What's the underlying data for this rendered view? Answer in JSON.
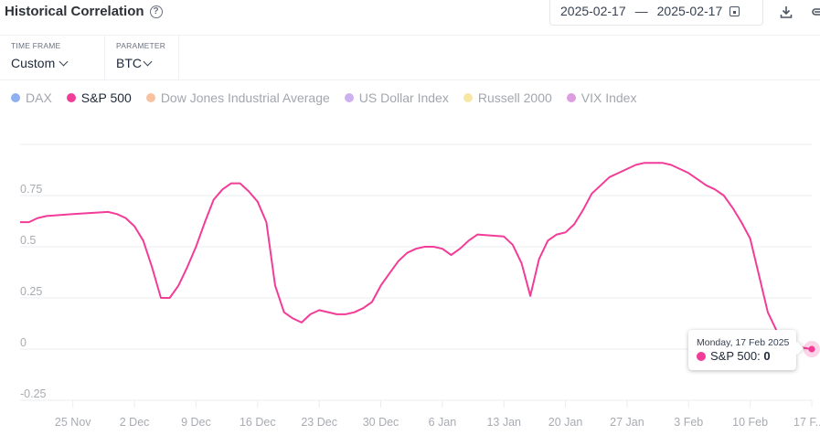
{
  "header": {
    "title": "Historical Correlation",
    "help_icon": "question-circle-icon",
    "date_start": "2025-02-17",
    "date_separator": "—",
    "date_end": "2025-02-17",
    "calendar_icon": "calendar-icon",
    "download_icon": "download-icon",
    "share_icon": "share-icon"
  },
  "filters": [
    {
      "label": "TIME FRAME",
      "value": "Custom"
    },
    {
      "label": "PARAMETER",
      "value": "BTC"
    }
  ],
  "legend": [
    {
      "name": "DAX",
      "color": "#8fb0f0",
      "active": false
    },
    {
      "name": "S&P 500",
      "color": "#f23c98",
      "active": true
    },
    {
      "name": "Dow Jones Industrial Average",
      "color": "#f7c2a0",
      "active": false
    },
    {
      "name": "US Dollar Index",
      "color": "#cdb0ee",
      "active": false
    },
    {
      "name": "Russell 2000",
      "color": "#f6e7a4",
      "active": false
    },
    {
      "name": "VIX Index",
      "color": "#dc9ee0",
      "active": false
    }
  ],
  "tooltip": {
    "date": "Monday, 17 Feb 2025",
    "series": "S&P 500: ",
    "value": "0"
  },
  "chart_data": {
    "type": "line",
    "title": "Historical Correlation",
    "xlabel": "",
    "ylabel": "",
    "ylim": [
      -0.25,
      1.0
    ],
    "grid": true,
    "legend_position": "top",
    "y_ticks": [
      "0.75",
      "0.5",
      "0.25",
      "0",
      "-0.25"
    ],
    "x_ticks": [
      "25 Nov",
      "2 Dec",
      "9 Dec",
      "16 Dec",
      "23 Dec",
      "30 Dec",
      "6 Jan",
      "13 Jan",
      "20 Jan",
      "27 Jan",
      "3 Feb",
      "10 Feb",
      "17 F..."
    ],
    "series": [
      {
        "name": "S&P 500",
        "color": "#f23c98",
        "points": [
          {
            "date": "2024-11-19",
            "value": 0.62
          },
          {
            "date": "2024-11-20",
            "value": 0.62
          },
          {
            "date": "2024-11-21",
            "value": 0.64
          },
          {
            "date": "2024-11-22",
            "value": 0.65
          },
          {
            "date": "2024-11-25",
            "value": 0.66
          },
          {
            "date": "2024-11-29",
            "value": 0.67
          },
          {
            "date": "2024-11-30",
            "value": 0.66
          },
          {
            "date": "2024-12-01",
            "value": 0.64
          },
          {
            "date": "2024-12-02",
            "value": 0.6
          },
          {
            "date": "2024-12-03",
            "value": 0.53
          },
          {
            "date": "2024-12-04",
            "value": 0.4
          },
          {
            "date": "2024-12-05",
            "value": 0.25
          },
          {
            "date": "2024-12-06",
            "value": 0.25
          },
          {
            "date": "2024-12-07",
            "value": 0.31
          },
          {
            "date": "2024-12-08",
            "value": 0.4
          },
          {
            "date": "2024-12-09",
            "value": 0.5
          },
          {
            "date": "2024-12-10",
            "value": 0.62
          },
          {
            "date": "2024-12-11",
            "value": 0.73
          },
          {
            "date": "2024-12-12",
            "value": 0.78
          },
          {
            "date": "2024-12-13",
            "value": 0.81
          },
          {
            "date": "2024-12-14",
            "value": 0.81
          },
          {
            "date": "2024-12-15",
            "value": 0.77
          },
          {
            "date": "2024-12-16",
            "value": 0.72
          },
          {
            "date": "2024-12-17",
            "value": 0.62
          },
          {
            "date": "2024-12-18",
            "value": 0.31
          },
          {
            "date": "2024-12-19",
            "value": 0.18
          },
          {
            "date": "2024-12-20",
            "value": 0.15
          },
          {
            "date": "2024-12-21",
            "value": 0.13
          },
          {
            "date": "2024-12-22",
            "value": 0.17
          },
          {
            "date": "2024-12-23",
            "value": 0.19
          },
          {
            "date": "2024-12-25",
            "value": 0.17
          },
          {
            "date": "2024-12-26",
            "value": 0.17
          },
          {
            "date": "2024-12-27",
            "value": 0.18
          },
          {
            "date": "2024-12-28",
            "value": 0.2
          },
          {
            "date": "2024-12-29",
            "value": 0.23
          },
          {
            "date": "2024-12-30",
            "value": 0.31
          },
          {
            "date": "2024-12-31",
            "value": 0.37
          },
          {
            "date": "2025-01-01",
            "value": 0.43
          },
          {
            "date": "2025-01-02",
            "value": 0.47
          },
          {
            "date": "2025-01-03",
            "value": 0.49
          },
          {
            "date": "2025-01-04",
            "value": 0.5
          },
          {
            "date": "2025-01-05",
            "value": 0.5
          },
          {
            "date": "2025-01-06",
            "value": 0.49
          },
          {
            "date": "2025-01-07",
            "value": 0.46
          },
          {
            "date": "2025-01-08",
            "value": 0.49
          },
          {
            "date": "2025-01-09",
            "value": 0.53
          },
          {
            "date": "2025-01-10",
            "value": 0.56
          },
          {
            "date": "2025-01-13",
            "value": 0.55
          },
          {
            "date": "2025-01-14",
            "value": 0.51
          },
          {
            "date": "2025-01-15",
            "value": 0.42
          },
          {
            "date": "2025-01-16",
            "value": 0.26
          },
          {
            "date": "2025-01-17",
            "value": 0.44
          },
          {
            "date": "2025-01-18",
            "value": 0.53
          },
          {
            "date": "2025-01-19",
            "value": 0.56
          },
          {
            "date": "2025-01-20",
            "value": 0.57
          },
          {
            "date": "2025-01-21",
            "value": 0.61
          },
          {
            "date": "2025-01-22",
            "value": 0.68
          },
          {
            "date": "2025-01-23",
            "value": 0.76
          },
          {
            "date": "2025-01-24",
            "value": 0.8
          },
          {
            "date": "2025-01-25",
            "value": 0.84
          },
          {
            "date": "2025-01-26",
            "value": 0.86
          },
          {
            "date": "2025-01-27",
            "value": 0.88
          },
          {
            "date": "2025-01-28",
            "value": 0.9
          },
          {
            "date": "2025-01-29",
            "value": 0.91
          },
          {
            "date": "2025-01-31",
            "value": 0.91
          },
          {
            "date": "2025-02-01",
            "value": 0.9
          },
          {
            "date": "2025-02-02",
            "value": 0.88
          },
          {
            "date": "2025-02-03",
            "value": 0.86
          },
          {
            "date": "2025-02-04",
            "value": 0.83
          },
          {
            "date": "2025-02-05",
            "value": 0.8
          },
          {
            "date": "2025-02-06",
            "value": 0.78
          },
          {
            "date": "2025-02-07",
            "value": 0.75
          },
          {
            "date": "2025-02-08",
            "value": 0.69
          },
          {
            "date": "2025-02-09",
            "value": 0.62
          },
          {
            "date": "2025-02-10",
            "value": 0.54
          },
          {
            "date": "2025-02-11",
            "value": 0.36
          },
          {
            "date": "2025-02-12",
            "value": 0.18
          },
          {
            "date": "2025-02-13",
            "value": 0.09
          },
          {
            "date": "2025-02-14",
            "value": 0.02
          },
          {
            "date": "2025-02-17",
            "value": 0.0
          }
        ]
      }
    ]
  }
}
